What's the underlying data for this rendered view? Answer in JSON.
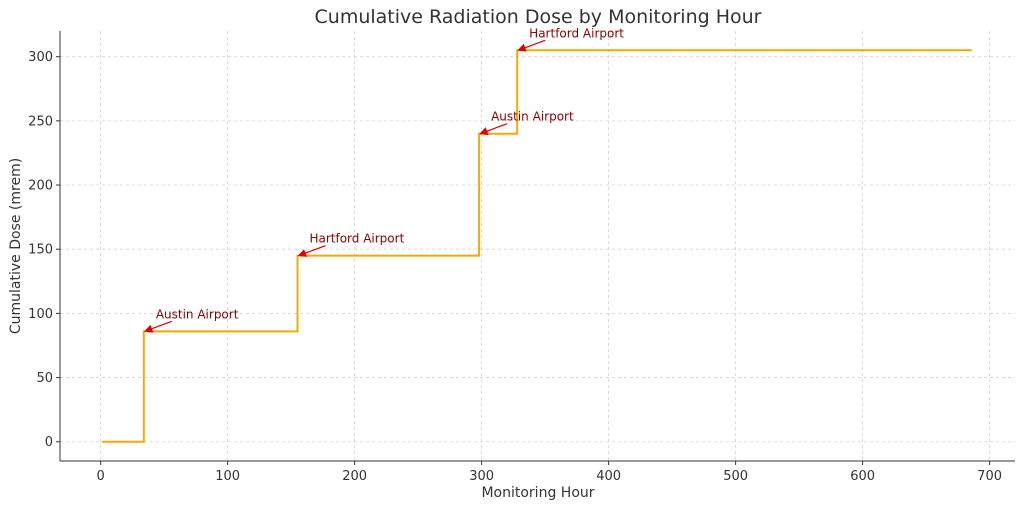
{
  "chart_data": {
    "type": "line",
    "step": "post",
    "title": "Cumulative Radiation Dose by Monitoring Hour",
    "xlabel": "Monitoring Hour",
    "ylabel": "Cumulative Dose (mrem)",
    "xlim": [
      -32,
      720
    ],
    "ylim": [
      -15,
      320
    ],
    "xticks": [
      0,
      100,
      200,
      300,
      400,
      500,
      600,
      700
    ],
    "yticks": [
      0,
      50,
      100,
      150,
      200,
      250,
      300
    ],
    "grid": true,
    "legend": "none",
    "series": [
      {
        "points": [
          [
            1,
            0
          ],
          [
            34,
            0
          ],
          [
            34,
            86
          ],
          [
            155,
            86
          ],
          [
            155,
            145
          ],
          [
            298,
            145
          ],
          [
            298,
            240
          ],
          [
            328,
            240
          ],
          [
            328,
            305
          ],
          [
            686,
            305
          ]
        ]
      }
    ],
    "annotations": [
      {
        "text": "Austin Airport",
        "x": 34,
        "y": 86
      },
      {
        "text": "Hartford Airport",
        "x": 155,
        "y": 145
      },
      {
        "text": "Austin Airport",
        "x": 298,
        "y": 240
      },
      {
        "text": "Hartford Airport",
        "x": 328,
        "y": 305
      }
    ]
  },
  "colors": {
    "line": "#f5a900",
    "annotation": "#8b0000",
    "arrow": "#e00000",
    "grid": "#d0d0d0",
    "axis": "#333333"
  }
}
